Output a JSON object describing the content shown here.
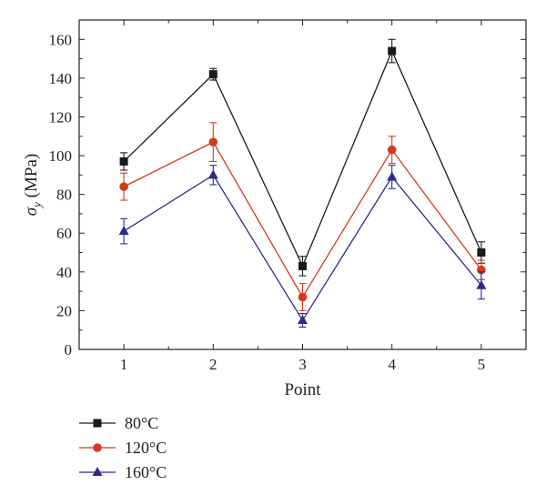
{
  "chart_data": {
    "type": "line",
    "title": "",
    "xlabel": "Point",
    "ylabel_main": "σ",
    "ylabel_sub": "y",
    "ylabel_unit": " (MPa)",
    "x": [
      1,
      2,
      3,
      4,
      5
    ],
    "xticks": [
      "1",
      "2",
      "3",
      "4",
      "5"
    ],
    "xlim": [
      0.5,
      5.5
    ],
    "ylim": [
      0,
      170
    ],
    "yticks": [
      "0",
      "20",
      "40",
      "60",
      "80",
      "100",
      "120",
      "140",
      "160"
    ],
    "grid": false,
    "legend_position": "bottom-left",
    "series": [
      {
        "name": "80°C",
        "color": "#1a1a1a",
        "marker": "square",
        "values": [
          97,
          142,
          43,
          154,
          50
        ],
        "error": [
          4.5,
          3,
          5,
          6,
          5.5
        ]
      },
      {
        "name": "120°C",
        "color": "#d23a1e",
        "marker": "circle",
        "values": [
          84,
          107,
          27,
          103,
          41
        ],
        "error": [
          7,
          10,
          7,
          7,
          5
        ]
      },
      {
        "name": "160°C",
        "color": "#2e2a8c",
        "marker": "triangle",
        "values": [
          61,
          90,
          15,
          89,
          33
        ],
        "error": [
          6.5,
          5,
          3.5,
          6,
          7
        ]
      }
    ]
  }
}
